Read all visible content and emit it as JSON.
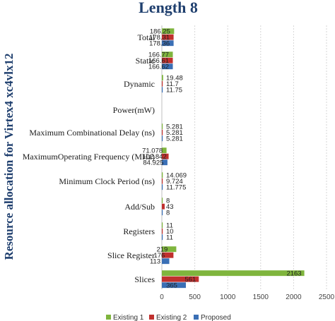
{
  "chart_data": {
    "type": "bar",
    "orientation": "horizontal",
    "title": "Length 8",
    "ylabel": "Resource allocation for Virtex4  xc4vlx12",
    "xlabel": "",
    "xlim": [
      0,
      2500
    ],
    "xticks": [
      "0",
      "500",
      "1000",
      "1500",
      "2000",
      "2500"
    ],
    "grid": true,
    "legend_position": "bottom",
    "categories": [
      "Total",
      "Static",
      "Dynamic",
      "Power(mW)",
      "Maximum Combinational Delay (ns)",
      "MaximumOperating Frequency (MHz)",
      "Minimum Clock Period (ns)",
      "Add/Sub",
      "Registers",
      "Slice Register",
      "Slices"
    ],
    "series": [
      {
        "name": "Existing  1",
        "color": "#7fb53d",
        "values": [
          186.25,
          166.77,
          19.48,
          null,
          5.281,
          71.078,
          14.069,
          8,
          11,
          219,
          2163
        ],
        "labels": [
          "186.25",
          "166.77",
          "19.48",
          "",
          "5.281",
          "71.078",
          "14.069",
          "8",
          "11",
          "219",
          "2163"
        ]
      },
      {
        "name": "Existing  2",
        "color": "#c0302e",
        "values": [
          178.31,
          166.61,
          11.7,
          null,
          5.281,
          102.842,
          9.724,
          43,
          10,
          176,
          561
        ],
        "labels": [
          "178.31",
          "166.61",
          "11.7",
          "",
          "5.281",
          "102.842",
          "9.724",
          "43",
          "10",
          "176",
          "561"
        ]
      },
      {
        "name": "Proposed",
        "color": "#3a6fb5",
        "values": [
          178.36,
          166.62,
          11.75,
          null,
          5.281,
          84.925,
          11.775,
          8,
          11,
          113,
          365
        ],
        "labels": [
          "178.36",
          "166.62",
          "11.75",
          "",
          "5.281",
          "84.925",
          "11.775",
          "8",
          "11",
          "113",
          "365"
        ]
      }
    ]
  }
}
